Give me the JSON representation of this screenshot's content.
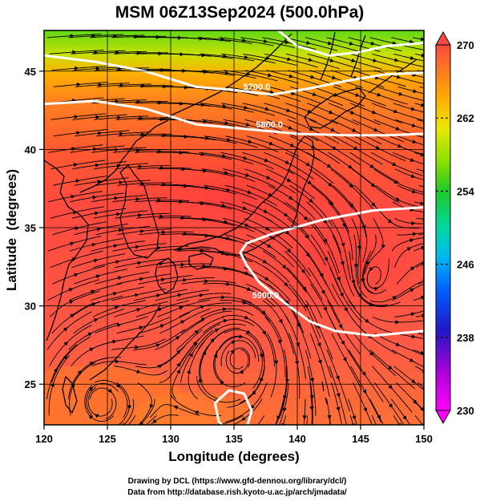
{
  "chart_data": {
    "type": "heatmap",
    "title": "MSM 06Z13Sep2024 (500.0hPa)",
    "xlabel": "Longitude (degrees)",
    "ylabel": "Latitude  (degrees)",
    "xlim": [
      120,
      150
    ],
    "ylim": [
      22.4,
      47.6
    ],
    "x_ticks": [
      120,
      125,
      130,
      135,
      140,
      145,
      150
    ],
    "y_ticks": [
      25,
      30,
      35,
      40,
      45
    ],
    "x_tick_labels": [
      "120",
      "125",
      "130",
      "135",
      "140",
      "145",
      "150"
    ],
    "y_tick_labels": [
      "25",
      "30",
      "35",
      "40",
      "45"
    ],
    "grid": true,
    "colorbar": {
      "min": 230,
      "max": 270,
      "ticks": [
        230,
        238,
        246,
        254,
        262,
        270
      ],
      "tick_labels": [
        "230",
        "238",
        "246",
        "254",
        "262",
        "270"
      ],
      "placement": "right"
    },
    "contours": [
      {
        "label": "5700.0",
        "label_lon": 136.8,
        "label_lat": 43.8,
        "points": [
          [
            120,
            46.0
          ],
          [
            124,
            45.6
          ],
          [
            128,
            45.0
          ],
          [
            132,
            44.0
          ],
          [
            135,
            43.8
          ],
          [
            138,
            43.5
          ],
          [
            141,
            43.9
          ],
          [
            144,
            44.4
          ],
          [
            147,
            44.8
          ],
          [
            150,
            44.9
          ]
        ]
      },
      {
        "label": "5800.0",
        "label_lon": 137.8,
        "label_lat": 41.4,
        "points": [
          [
            120,
            42.9
          ],
          [
            124,
            43.1
          ],
          [
            128,
            42.6
          ],
          [
            132,
            41.6
          ],
          [
            136,
            41.3
          ],
          [
            140,
            41.0
          ],
          [
            144,
            40.9
          ],
          [
            147,
            40.9
          ],
          [
            150,
            41.0
          ]
        ]
      },
      {
        "label": "5900.0",
        "label_lon": 137.5,
        "label_lat": 30.5,
        "points": [
          [
            150,
            36.3
          ],
          [
            146,
            36.1
          ],
          [
            142,
            35.5
          ],
          [
            138,
            34.6
          ],
          [
            136,
            34.0
          ],
          [
            135.5,
            33.4
          ],
          [
            136,
            32.6
          ],
          [
            137,
            31.5
          ],
          [
            139,
            30.2
          ],
          [
            141,
            29.0
          ],
          [
            143,
            28.4
          ],
          [
            146,
            28.1
          ],
          [
            150,
            28.4
          ]
        ]
      },
      {
        "label": "",
        "label_lon": 0,
        "label_lat": 0,
        "points": [
          [
            134.8,
            21.8
          ],
          [
            133.8,
            22.6
          ],
          [
            133.5,
            23.8
          ],
          [
            134.6,
            24.6
          ],
          [
            135.8,
            24.4
          ],
          [
            136.4,
            23.3
          ],
          [
            136,
            22.2
          ],
          [
            135,
            21.8
          ]
        ]
      },
      {
        "label": "",
        "label_lon": 0,
        "label_lat": 0,
        "points": [
          [
            138.5,
            47.6
          ],
          [
            140,
            46.6
          ],
          [
            142.5,
            46.0
          ],
          [
            144.8,
            46.2
          ],
          [
            147,
            46.6
          ],
          [
            150,
            46.8
          ]
        ]
      }
    ],
    "cyclone_center": [
      145.8,
      31.4
    ],
    "temperature_field_note": ""
  },
  "credits": {
    "line1": "Drawing by DCL (https://www.gfd-dennou.org/library/dcl/)",
    "line2": "Data from http://database.rish.kyoto-u.ac.jp/arch/jmadata/"
  }
}
